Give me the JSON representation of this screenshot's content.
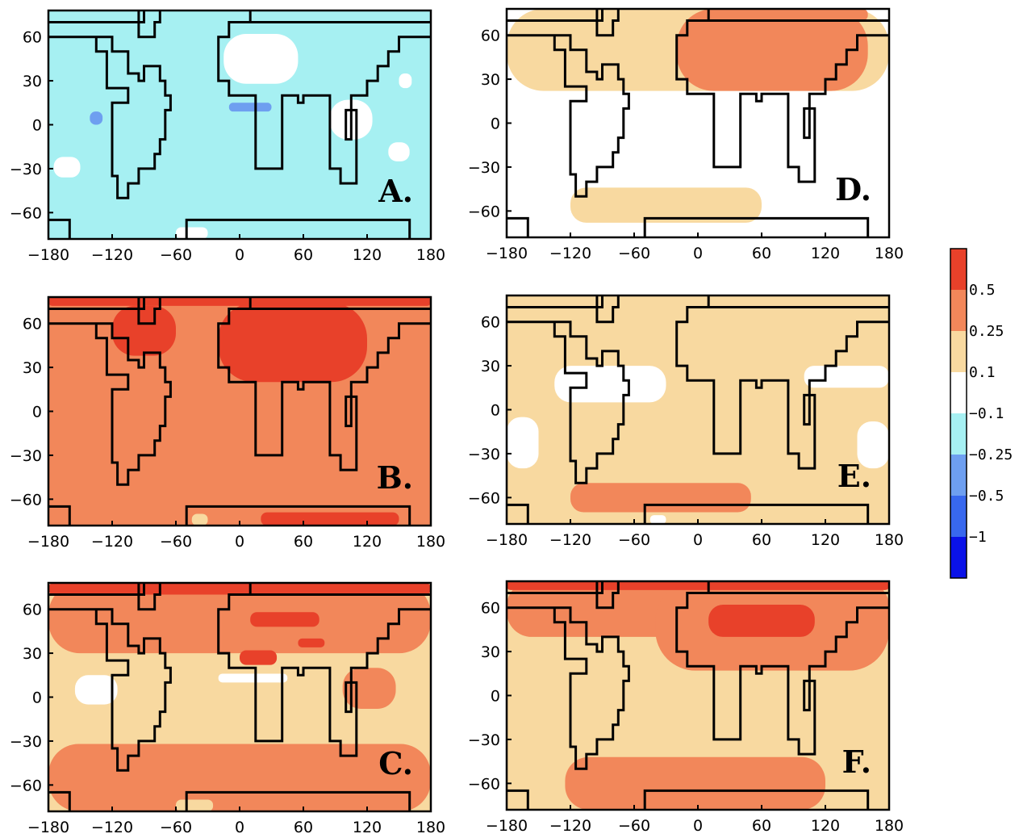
{
  "chart_data": {
    "type": "heatmap",
    "layout": "3 rows x 2 columns of lat-lon maps",
    "xlim": [
      -180,
      180
    ],
    "ylim": [
      -78,
      78
    ],
    "x_ticks": [
      -180,
      -120,
      -60,
      0,
      60,
      120,
      180
    ],
    "y_ticks": [
      -60,
      -30,
      0,
      30,
      60
    ],
    "x_tick_labels": [
      "−180",
      "−120",
      "−60",
      "0",
      "60",
      "120",
      "180"
    ],
    "y_tick_labels": [
      "−60",
      "−30",
      "0",
      "30",
      "60"
    ],
    "colorbar": {
      "labels": [
        "0.5",
        "0.25",
        "0.1",
        "−0.1",
        "−0.25",
        "−0.5",
        "−1"
      ],
      "colors": [
        "#e8412a",
        "#f2875a",
        "#f8d9a0",
        "#ffffff",
        "#a6f0f2",
        "#6e9ff0",
        "#3868ee",
        "#0a12e8"
      ],
      "scale": "discrete"
    },
    "level_colors": {
      "-3": "#3868ee",
      "-2": "#6e9ff0",
      "-1": "#a6f0f2",
      "0": "#ffffff",
      "1": "#f8d9a0",
      "2": "#f2875a",
      "3": "#e8412a"
    },
    "panels": [
      {
        "label": "A.",
        "background_level": -1,
        "regions": [
          {
            "level": 0,
            "lon": [
              -15,
              55
            ],
            "lat": [
              28,
              62
            ]
          },
          {
            "level": 0,
            "lon": [
              85,
              125
            ],
            "lat": [
              -10,
              17
            ]
          },
          {
            "level": 0,
            "lon": [
              -175,
              -150
            ],
            "lat": [
              -36,
              -22
            ]
          },
          {
            "level": 0,
            "lon": [
              140,
              160
            ],
            "lat": [
              -25,
              -12
            ]
          },
          {
            "level": 0,
            "lon": [
              150,
              162
            ],
            "lat": [
              25,
              35
            ]
          },
          {
            "level": 0,
            "lon": [
              -60,
              -30
            ],
            "lat": [
              -78,
              -70
            ]
          },
          {
            "level": -2,
            "lon": [
              -10,
              30
            ],
            "lat": [
              9,
              15
            ]
          },
          {
            "level": -2,
            "lon": [
              -141,
              -129
            ],
            "lat": [
              0,
              9
            ]
          }
        ]
      },
      {
        "label": "B.",
        "background_level": 2,
        "regions": [
          {
            "level": 3,
            "lon": [
              -180,
              180
            ],
            "lat": [
              72,
              78
            ]
          },
          {
            "level": 3,
            "lon": [
              -120,
              -60
            ],
            "lat": [
              38,
              72
            ]
          },
          {
            "level": 3,
            "lon": [
              -20,
              120
            ],
            "lat": [
              20,
              74
            ]
          },
          {
            "level": 3,
            "lon": [
              20,
              150
            ],
            "lat": [
              -78,
              -69
            ]
          },
          {
            "level": 1,
            "lon": [
              -45,
              -30
            ],
            "lat": [
              -78,
              -70
            ]
          }
        ]
      },
      {
        "label": "C.",
        "background_level": 1,
        "regions": [
          {
            "level": 2,
            "lon": [
              -180,
              180
            ],
            "lat": [
              30,
              78
            ]
          },
          {
            "level": 2,
            "lon": [
              -180,
              180
            ],
            "lat": [
              -78,
              -32
            ]
          },
          {
            "level": 2,
            "lon": [
              97,
              147
            ],
            "lat": [
              -8,
              20
            ]
          },
          {
            "level": 3,
            "lon": [
              -180,
              180
            ],
            "lat": [
              70,
              78
            ]
          },
          {
            "level": 3,
            "lon": [
              10,
              75
            ],
            "lat": [
              48,
              58
            ]
          },
          {
            "level": 3,
            "lon": [
              0,
              35
            ],
            "lat": [
              22,
              32
            ]
          },
          {
            "level": 3,
            "lon": [
              55,
              80
            ],
            "lat": [
              34,
              40
            ]
          },
          {
            "level": 0,
            "lon": [
              -155,
              -115
            ],
            "lat": [
              -5,
              15
            ]
          },
          {
            "level": 0,
            "lon": [
              -20,
              45
            ],
            "lat": [
              10,
              16
            ]
          },
          {
            "level": 1,
            "lon": [
              -60,
              -25
            ],
            "lat": [
              -78,
              -70
            ]
          }
        ]
      },
      {
        "label": "D.",
        "background_level": 0,
        "regions": [
          {
            "level": 1,
            "lon": [
              -180,
              180
            ],
            "lat": [
              22,
              78
            ]
          },
          {
            "level": 1,
            "lon": [
              -120,
              60
            ],
            "lat": [
              -68,
              -44
            ]
          },
          {
            "level": 2,
            "lon": [
              -20,
              160
            ],
            "lat": [
              22,
              78
            ]
          },
          {
            "level": 2,
            "lon": [
              60,
              160
            ],
            "lat": [
              70,
              78
            ]
          }
        ]
      },
      {
        "label": "E.",
        "background_level": 1,
        "regions": [
          {
            "level": 0,
            "lon": [
              -135,
              -30
            ],
            "lat": [
              5,
              30
            ]
          },
          {
            "level": 0,
            "lon": [
              100,
              180
            ],
            "lat": [
              15,
              30
            ]
          },
          {
            "level": 0,
            "lon": [
              150,
              180
            ],
            "lat": [
              -40,
              -8
            ]
          },
          {
            "level": 0,
            "lon": [
              -180,
              -150
            ],
            "lat": [
              -40,
              -5
            ]
          },
          {
            "level": 0,
            "lon": [
              -45,
              -30
            ],
            "lat": [
              -78,
              -72
            ]
          },
          {
            "level": 2,
            "lon": [
              -120,
              50
            ],
            "lat": [
              -70,
              -50
            ]
          }
        ]
      },
      {
        "label": "F.",
        "background_level": 1,
        "regions": [
          {
            "level": 2,
            "lon": [
              -180,
              180
            ],
            "lat": [
              40,
              78
            ]
          },
          {
            "level": 2,
            "lon": [
              -40,
              180
            ],
            "lat": [
              17,
              78
            ]
          },
          {
            "level": 2,
            "lon": [
              -125,
              120
            ],
            "lat": [
              -78,
              -42
            ]
          },
          {
            "level": 3,
            "lon": [
              -180,
              180
            ],
            "lat": [
              72,
              78
            ]
          },
          {
            "level": 3,
            "lon": [
              10,
              110
            ],
            "lat": [
              40,
              62
            ]
          }
        ]
      }
    ]
  }
}
